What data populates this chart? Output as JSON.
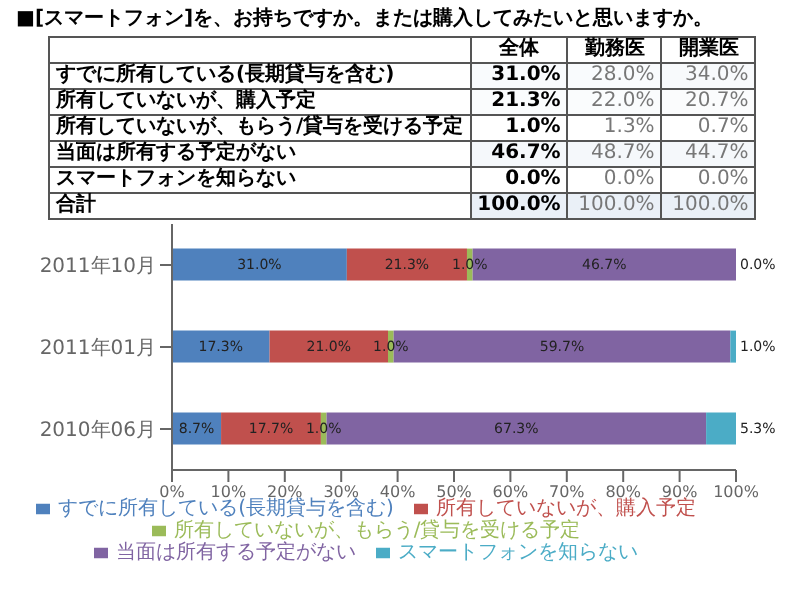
{
  "chart_data": [
    {
      "type": "heatmap",
      "title": "■[スマートフォン]を、お持ちですか。または購入してみたいと思いますか。",
      "categories": [
        "全体",
        "勤務医",
        "開業医"
      ],
      "y_categories": [
        "すでに所有している(長期貸与を含む)",
        "所有していないが、購入予定",
        "所有していないが、もらう/貸与を受ける予定",
        "当面は所有する予定がない",
        "スマートフォンを知らない",
        "合計"
      ],
      "cells": [
        [
          31.0,
          28.0,
          34.0
        ],
        [
          21.3,
          22.0,
          20.7
        ],
        [
          1.0,
          1.3,
          0.7
        ],
        [
          46.7,
          48.7,
          44.7
        ],
        [
          0.0,
          0.0,
          0.0
        ],
        [
          100.0,
          100.0,
          100.0
        ]
      ],
      "cell_labels": [
        [
          "31.0%",
          "28.0%",
          "34.0%"
        ],
        [
          "21.3%",
          "22.0%",
          "20.7%"
        ],
        [
          "1.0%",
          "1.3%",
          "0.7%"
        ],
        [
          "46.7%",
          "48.7%",
          "44.7%"
        ],
        [
          "0.0%",
          "0.0%",
          "0.0%"
        ],
        [
          "100.0%",
          "100.0%",
          "100.0%"
        ]
      ]
    },
    {
      "type": "bar",
      "orientation": "horizontal",
      "stacked": true,
      "categories": [
        "2011年10月",
        "2011年01月",
        "2010年06月"
      ],
      "legend": "bottom",
      "xlim": [
        0,
        100
      ],
      "xticks": [
        {
          "value": 0,
          "label": "0%"
        },
        {
          "value": 10,
          "label": "10%"
        },
        {
          "value": 20,
          "label": "20%"
        },
        {
          "value": 30,
          "label": "30%"
        },
        {
          "value": 40,
          "label": "40%"
        },
        {
          "value": 50,
          "label": "50%"
        },
        {
          "value": 60,
          "label": "60%"
        },
        {
          "value": 70,
          "label": "70%"
        },
        {
          "value": 80,
          "label": "80%"
        },
        {
          "value": 90,
          "label": "90%"
        },
        {
          "value": 100,
          "label": "100%"
        }
      ],
      "series": [
        {
          "name": "すでに所有している(長期貸与を含む)",
          "color": "#4f81bd",
          "values": [
            31.0,
            17.3,
            8.7
          ],
          "value_labels": [
            "31.0%",
            "17.3%",
            "8.7%"
          ]
        },
        {
          "name": "所有していないが、購入予定",
          "color": "#c0504d",
          "values": [
            21.3,
            21.0,
            17.7
          ],
          "value_labels": [
            "21.3%",
            "21.0%",
            "17.7%"
          ]
        },
        {
          "name": "所有していないが、もらう/貸与を受ける予定",
          "color": "#9bbb59",
          "values": [
            1.0,
            1.0,
            1.0
          ],
          "value_labels": [
            "1.0%",
            "1.0%",
            "1.0%"
          ]
        },
        {
          "name": "当面は所有する予定がない",
          "color": "#8064a2",
          "values": [
            46.7,
            59.7,
            67.3
          ],
          "value_labels": [
            "46.7%",
            "59.7%",
            "67.3%"
          ]
        },
        {
          "name": "スマートフォンを知らない",
          "color": "#4bacc6",
          "values": [
            0.0,
            1.0,
            5.3
          ],
          "value_labels": [
            "0.0%",
            "1.0%",
            "5.3%"
          ]
        }
      ]
    }
  ]
}
